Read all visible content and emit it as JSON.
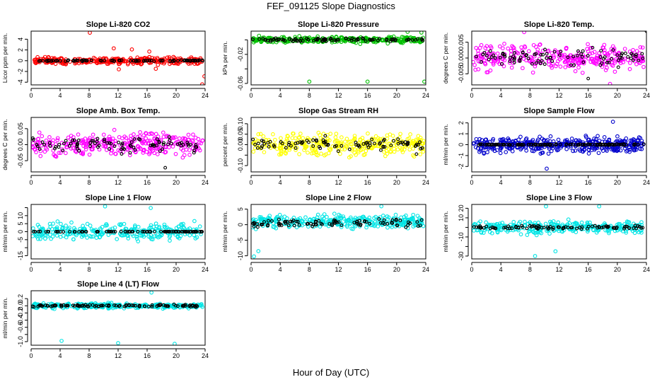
{
  "figure": {
    "title": "FEF_091125  Slope Diagnostics",
    "xlabel": "Hour of Day (UTC)"
  },
  "chart_data": [
    {
      "type": "scatter",
      "title": "Slope Li-820 CO2",
      "ylabel": "Licor ppm per min.",
      "xlim": [
        0,
        24
      ],
      "xticks": [
        0,
        4,
        8,
        12,
        16,
        20,
        24
      ],
      "ylim": [
        -4.5,
        5.5
      ],
      "yticks": [
        -4,
        -2,
        0,
        2,
        4
      ],
      "ytick_labels": [
        "-4",
        "-2",
        "0",
        "2",
        "4"
      ],
      "series": [
        {
          "color": "#ff0000",
          "center": 0,
          "spread": 0.6,
          "n": 300,
          "outliers": [
            [
              8.1,
              5.2
            ],
            [
              11.4,
              2.3
            ],
            [
              12.1,
              -1.6
            ],
            [
              13.9,
              2.1
            ],
            [
              17.2,
              -1.5
            ],
            [
              23.6,
              -4.4
            ],
            [
              23.9,
              -2.9
            ],
            [
              16.3,
              1.7
            ]
          ]
        },
        {
          "color": "#000000",
          "center": 0,
          "spread": 0.1,
          "n": 90,
          "outliers": []
        }
      ]
    },
    {
      "type": "scatter",
      "title": "Slope Li-820 Pressure",
      "ylabel": "kPa per min.",
      "xlim": [
        0,
        24
      ],
      "xticks": [
        0,
        4,
        8,
        12,
        16,
        20,
        24
      ],
      "ylim": [
        -0.062,
        0.012
      ],
      "yticks": [
        -0.06,
        -0.04,
        -0.02,
        0
      ],
      "ytick_labels": [
        "-0.06",
        "",
        "-0.02",
        ""
      ],
      "series": [
        {
          "color": "#00c000",
          "center": 0,
          "spread": 0.004,
          "n": 300,
          "outliers": [
            [
              8.0,
              -0.0575
            ],
            [
              16.0,
              -0.0575
            ],
            [
              23.8,
              -0.0575
            ],
            [
              23.4,
              0.01
            ],
            [
              21.5,
              0.011
            ]
          ]
        },
        {
          "color": "#000000",
          "center": 0,
          "spread": 0.002,
          "n": 90,
          "outliers": []
        }
      ]
    },
    {
      "type": "scatter",
      "title": "Slope Li-820 Temp.",
      "ylabel": "degrees C per min.",
      "xlim": [
        0,
        24
      ],
      "xticks": [
        0,
        4,
        8,
        12,
        16,
        20,
        24
      ],
      "ylim": [
        -0.0085,
        0.0085
      ],
      "yticks": [
        -0.005,
        0,
        0.005
      ],
      "ytick_labels": [
        "-0.005",
        "0.000",
        "0.005"
      ],
      "series": [
        {
          "color": "#ff00ff",
          "center": 0,
          "spread": 0.0034,
          "n": 320,
          "outliers": [
            [
              19.0,
              -0.0082
            ],
            [
              7.2,
              0.0082
            ]
          ]
        },
        {
          "color": "#000000",
          "center": 0,
          "spread": 0.0025,
          "n": 90,
          "outliers": [
            [
              24.0,
              0.0085
            ],
            [
              16.0,
              -0.0065
            ]
          ]
        }
      ]
    },
    {
      "type": "scatter",
      "title": "Slope Amb. Box Temp.",
      "ylabel": "degrees C per min.",
      "xlim": [
        0,
        24
      ],
      "xticks": [
        0,
        4,
        8,
        12,
        16,
        20,
        24
      ],
      "ylim": [
        -0.085,
        0.085
      ],
      "yticks": [
        -0.05,
        0,
        0.05
      ],
      "ytick_labels": [
        "-0.05",
        "0.00",
        "0.05"
      ],
      "series": [
        {
          "color": "#ff00ff",
          "center": 0,
          "spread": 0.033,
          "n": 320,
          "outliers": []
        },
        {
          "color": "#000000",
          "center": 0,
          "spread": 0.02,
          "n": 90,
          "outliers": [
            [
              18.5,
              -0.072
            ]
          ]
        }
      ]
    },
    {
      "type": "scatter",
      "title": "Slope Gas Stream RH",
      "ylabel": "percent per min.",
      "xlim": [
        0,
        24
      ],
      "xticks": [
        0,
        4,
        8,
        12,
        16,
        20,
        24
      ],
      "ylim": [
        -0.13,
        0.13
      ],
      "yticks": [
        -0.1,
        -0.05,
        0,
        0.05,
        0.1
      ],
      "ytick_labels": [
        "-0.10",
        "",
        "0.00",
        "0.05",
        "0.10"
      ],
      "series": [
        {
          "color": "#ffff00",
          "center": 0,
          "spread": 0.045,
          "n": 330,
          "outliers": []
        },
        {
          "color": "#000000",
          "center": 0,
          "spread": 0.03,
          "n": 90,
          "outliers": []
        }
      ]
    },
    {
      "type": "scatter",
      "title": "Slope Sample Flow",
      "ylabel": "ml/min per min.",
      "xlim": [
        0,
        24
      ],
      "xticks": [
        0,
        4,
        8,
        12,
        16,
        20,
        24
      ],
      "ylim": [
        -2.5,
        2.5
      ],
      "yticks": [
        -2,
        -1,
        0,
        1,
        2
      ],
      "ytick_labels": [
        "-2",
        "-1",
        "0",
        "1",
        "2"
      ],
      "series": [
        {
          "color": "#0000cc",
          "center": 0,
          "spread": 0.6,
          "n": 420,
          "outliers": [
            [
              19.4,
              2.1
            ],
            [
              10.3,
              -2.2
            ]
          ]
        },
        {
          "color": "#000000",
          "center": 0,
          "spread": 0.05,
          "n": 120,
          "outliers": []
        }
      ]
    },
    {
      "type": "scatter",
      "title": "Slope Line 1 Flow",
      "ylabel": "ml/min per min.",
      "xlim": [
        0,
        24
      ],
      "xticks": [
        0,
        4,
        8,
        12,
        16,
        20,
        24
      ],
      "ylim": [
        -17,
        17
      ],
      "yticks": [
        -15,
        -10,
        -5,
        0,
        5,
        10,
        15
      ],
      "ytick_labels": [
        "-15",
        "",
        "-5",
        "0",
        "5",
        "10",
        ""
      ],
      "series": [
        {
          "color": "#00e5e5",
          "center": 0,
          "spread": 4.5,
          "n": 280,
          "outliers": [
            [
              10.2,
              15.8
            ],
            [
              16.5,
              14.8
            ]
          ]
        },
        {
          "color": "#000000",
          "center": 0,
          "spread": 0.1,
          "n": 90,
          "outliers": []
        }
      ]
    },
    {
      "type": "scatter",
      "title": "Slope Line 2 Flow",
      "ylabel": "ml/min per min.",
      "xlim": [
        0,
        24
      ],
      "xticks": [
        0,
        4,
        8,
        12,
        16,
        20,
        24
      ],
      "ylim": [
        -11,
        6.5
      ],
      "yticks": [
        -10,
        -5,
        0,
        5
      ],
      "ytick_labels": [
        "-10",
        "-5",
        "0",
        "5"
      ],
      "series": [
        {
          "color": "#00e5e5",
          "center": 1,
          "spread": 1.8,
          "n": 330,
          "outliers": [
            [
              1.0,
              -8.5
            ],
            [
              0.4,
              -10.2
            ],
            [
              17.9,
              5.9
            ]
          ]
        },
        {
          "color": "#000000",
          "center": 0.5,
          "spread": 1.0,
          "n": 90,
          "outliers": []
        }
      ]
    },
    {
      "type": "scatter",
      "title": "Slope Line 3 Flow",
      "ylabel": "ml/min per min.",
      "xlim": [
        0,
        24
      ],
      "xticks": [
        0,
        4,
        8,
        12,
        16,
        20,
        24
      ],
      "ylim": [
        -33,
        24
      ],
      "yticks": [
        -30,
        -20,
        -10,
        0,
        10,
        20
      ],
      "ytick_labels": [
        "-30",
        "",
        "-10",
        "",
        "10",
        "20"
      ],
      "series": [
        {
          "color": "#00e5e5",
          "center": 0,
          "spread": 6,
          "n": 300,
          "outliers": [
            [
              10.2,
              22
            ],
            [
              8.7,
              -30
            ],
            [
              17.5,
              22
            ],
            [
              11.5,
              -25
            ]
          ]
        },
        {
          "color": "#000000",
          "center": 0,
          "spread": 1.5,
          "n": 90,
          "outliers": []
        }
      ]
    },
    {
      "type": "scatter",
      "title": "Slope Line 4 (LT) Flow",
      "ylabel": "ml/min per min.",
      "xlim": [
        0,
        24
      ],
      "xticks": [
        0,
        4,
        8,
        12,
        16,
        20,
        24
      ],
      "ylim": [
        -1.1,
        0.42
      ],
      "yticks": [
        -1.0,
        -0.8,
        -0.6,
        -0.4,
        -0.2,
        0,
        0.2
      ],
      "ytick_labels": [
        "-1.0",
        "",
        "-0.6",
        "-0.4",
        "-0.2",
        "0.0",
        "0.2"
      ],
      "series": [
        {
          "color": "#00e5e5",
          "center": 0,
          "spread": 0.06,
          "n": 320,
          "outliers": [
            [
              4.2,
              -0.98
            ],
            [
              12.0,
              -1.04
            ],
            [
              19.8,
              -1.06
            ],
            [
              16.6,
              0.37
            ]
          ]
        },
        {
          "color": "#000000",
          "center": 0,
          "spread": 0.03,
          "n": 100,
          "outliers": []
        }
      ]
    }
  ]
}
